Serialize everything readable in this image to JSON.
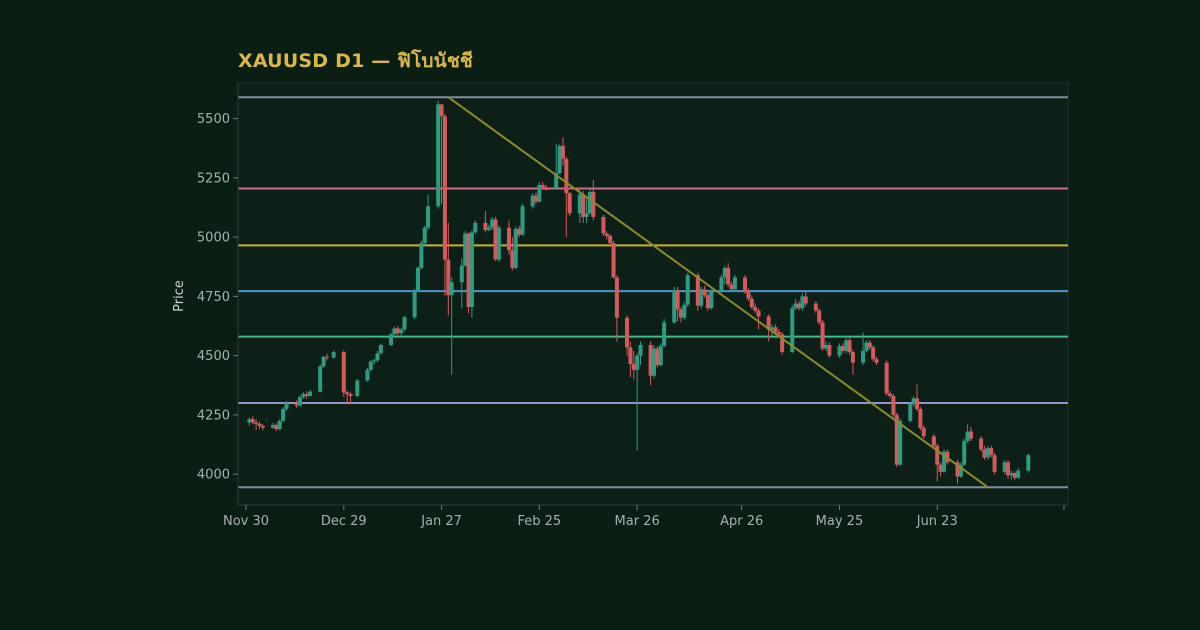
{
  "chart_data": {
    "type": "candlestick",
    "title": "XAUUSD D1 — ฟิโบนัชชี",
    "ylabel": "Price",
    "ylim": [
      3870,
      5650
    ],
    "xlim": [
      "2025-11-30",
      "2026-07-30"
    ],
    "y_ticks": [
      4000,
      4250,
      4500,
      4750,
      5000,
      5250,
      5500
    ],
    "x_ticks": [
      {
        "date": "2025-11-30",
        "label": "Nov 30"
      },
      {
        "date": "2025-12-29",
        "label": "Dec 29"
      },
      {
        "date": "2026-01-27",
        "label": "Jan 27"
      },
      {
        "date": "2026-02-25",
        "label": "Feb 25"
      },
      {
        "date": "2026-03-26",
        "label": "Mar 26"
      },
      {
        "date": "2026-04-26",
        "label": "Apr 26"
      },
      {
        "date": "2026-05-25",
        "label": "May 25"
      },
      {
        "date": "2026-06-23",
        "label": "Jun 23"
      }
    ],
    "grid": false,
    "colors": {
      "up": "#2e9c82",
      "down": "#d45b5b",
      "trendline": "#8d8a2c",
      "fib_levels": [
        "#7e8ea2",
        "#c86f86",
        "#c9b12e",
        "#4e95c9",
        "#3fbd89",
        "#9a92cc",
        "#7e8ea2"
      ]
    },
    "fib_levels": [
      5590,
      5205,
      4965,
      4772,
      4580,
      4300,
      3945
    ],
    "trendline": [
      {
        "date": "2026-01-29",
        "price": 5590
      },
      {
        "date": "2026-07-08",
        "price": 3945
      }
    ],
    "candles": [
      [
        "2025-12-01",
        4218,
        4232,
        4205,
        4240
      ],
      [
        "2025-12-02",
        4232,
        4218,
        4210,
        4245
      ],
      [
        "2025-12-03",
        4218,
        4212,
        4188,
        4232
      ],
      [
        "2025-12-04",
        4212,
        4203,
        4190,
        4222
      ],
      [
        "2025-12-05",
        4203,
        4196,
        4185,
        4212
      ],
      [
        "2025-12-08",
        4196,
        4208,
        4190,
        4216
      ],
      [
        "2025-12-09",
        4208,
        4190,
        4182,
        4215
      ],
      [
        "2025-12-10",
        4190,
        4225,
        4185,
        4232
      ],
      [
        "2025-12-11",
        4225,
        4275,
        4220,
        4282
      ],
      [
        "2025-12-12",
        4275,
        4302,
        4268,
        4308
      ],
      [
        "2025-12-15",
        4302,
        4290,
        4280,
        4312
      ],
      [
        "2025-12-16",
        4290,
        4325,
        4285,
        4332
      ],
      [
        "2025-12-17",
        4325,
        4338,
        4318,
        4346
      ],
      [
        "2025-12-18",
        4338,
        4330,
        4318,
        4350
      ],
      [
        "2025-12-19",
        4330,
        4348,
        4325,
        4356
      ],
      [
        "2025-12-22",
        4348,
        4455,
        4345,
        4462
      ],
      [
        "2025-12-23",
        4455,
        4495,
        4448,
        4500
      ],
      [
        "2025-12-24",
        4495,
        4492,
        4480,
        4508
      ],
      [
        "2025-12-26",
        4492,
        4515,
        4488,
        4522
      ],
      [
        "2025-12-29",
        4515,
        4345,
        4325,
        4522
      ],
      [
        "2025-12-30",
        4345,
        4338,
        4295,
        4352
      ],
      [
        "2025-12-31",
        4338,
        4330,
        4295,
        4345
      ],
      [
        "2026-01-02",
        4330,
        4395,
        4325,
        4402
      ],
      [
        "2026-01-05",
        4395,
        4440,
        4390,
        4448
      ],
      [
        "2026-01-06",
        4440,
        4475,
        4432,
        4482
      ],
      [
        "2026-01-07",
        4475,
        4480,
        4462,
        4488
      ],
      [
        "2026-01-08",
        4480,
        4510,
        4472,
        4520
      ],
      [
        "2026-01-09",
        4510,
        4545,
        4505,
        4552
      ],
      [
        "2026-01-12",
        4545,
        4590,
        4540,
        4596
      ],
      [
        "2026-01-13",
        4590,
        4615,
        4580,
        4622
      ],
      [
        "2026-01-14",
        4615,
        4595,
        4585,
        4625
      ],
      [
        "2026-01-15",
        4595,
        4610,
        4585,
        4618
      ],
      [
        "2026-01-16",
        4610,
        4662,
        4605,
        4668
      ],
      [
        "2026-01-19",
        4662,
        4775,
        4655,
        4782
      ],
      [
        "2026-01-20",
        4775,
        4870,
        4768,
        4878
      ],
      [
        "2026-01-21",
        4870,
        4975,
        4862,
        4985
      ],
      [
        "2026-01-22",
        4975,
        5040,
        4965,
        5048
      ],
      [
        "2026-01-23",
        5040,
        5130,
        5030,
        5180
      ],
      [
        "2026-01-26",
        5130,
        5560,
        5120,
        5575
      ],
      [
        "2026-01-27",
        5560,
        5510,
        5140,
        5560
      ],
      [
        "2026-01-28",
        5510,
        4905,
        4750,
        5520
      ],
      [
        "2026-01-29",
        4905,
        4755,
        4670,
        5060
      ],
      [
        "2026-01-30",
        4755,
        4810,
        4420,
        4830
      ],
      [
        "2026-02-02",
        4810,
        4880,
        4700,
        4910
      ],
      [
        "2026-02-03",
        4880,
        5015,
        4875,
        5025
      ],
      [
        "2026-02-04",
        5015,
        4705,
        4680,
        5020
      ],
      [
        "2026-02-05",
        4705,
        5020,
        4660,
        5030
      ],
      [
        "2026-02-06",
        5020,
        5060,
        5012,
        5070
      ],
      [
        "2026-02-09",
        5060,
        5030,
        5020,
        5110
      ],
      [
        "2026-02-10",
        5030,
        5040,
        5025,
        5050
      ],
      [
        "2026-02-11",
        5040,
        5075,
        5030,
        5085
      ],
      [
        "2026-02-12",
        5075,
        4905,
        4900,
        5085
      ],
      [
        "2026-02-13",
        4905,
        5040,
        4895,
        5050
      ],
      [
        "2026-02-16",
        5040,
        4945,
        4925,
        5070
      ],
      [
        "2026-02-17",
        4945,
        4870,
        4860,
        5000
      ],
      [
        "2026-02-18",
        4870,
        5035,
        4865,
        5045
      ],
      [
        "2026-02-19",
        5035,
        5010,
        5000,
        5048
      ],
      [
        "2026-02-20",
        5010,
        5130,
        5005,
        5140
      ],
      [
        "2026-02-23",
        5130,
        5175,
        5120,
        5185
      ],
      [
        "2026-02-24",
        5175,
        5150,
        5140,
        5188
      ],
      [
        "2026-02-25",
        5150,
        5220,
        5145,
        5232
      ],
      [
        "2026-02-26",
        5220,
        5210,
        5200,
        5232
      ],
      [
        "2026-02-27",
        5210,
        5205,
        5195,
        5220
      ],
      [
        "2026-03-02",
        5205,
        5270,
        5200,
        5395
      ],
      [
        "2026-03-03",
        5270,
        5385,
        5265,
        5390
      ],
      [
        "2026-03-04",
        5385,
        5330,
        5300,
        5420
      ],
      [
        "2026-03-05",
        5330,
        5185,
        5000,
        5340
      ],
      [
        "2026-03-06",
        5185,
        5100,
        5090,
        5190
      ],
      [
        "2026-03-09",
        5100,
        5180,
        5060,
        5200
      ],
      [
        "2026-03-10",
        5180,
        5085,
        5060,
        5195
      ],
      [
        "2026-03-11",
        5085,
        5100,
        5060,
        5170
      ],
      [
        "2026-03-12",
        5100,
        5190,
        5095,
        5200
      ],
      [
        "2026-03-13",
        5190,
        5085,
        5070,
        5240
      ],
      [
        "2026-03-16",
        5085,
        5015,
        5005,
        5095
      ],
      [
        "2026-03-17",
        5015,
        5005,
        4990,
        5025
      ],
      [
        "2026-03-18",
        5005,
        4975,
        4965,
        5012
      ],
      [
        "2026-03-19",
        4975,
        4830,
        4825,
        4985
      ],
      [
        "2026-03-20",
        4830,
        4660,
        4560,
        4840
      ],
      [
        "2026-03-23",
        4660,
        4535,
        4500,
        4670
      ],
      [
        "2026-03-24",
        4535,
        4465,
        4410,
        4560
      ],
      [
        "2026-03-25",
        4465,
        4440,
        4400,
        4520
      ],
      [
        "2026-03-26",
        4440,
        4500,
        4100,
        4510
      ],
      [
        "2026-03-27",
        4500,
        4545,
        4460,
        4560
      ],
      [
        "2026-03-30",
        4545,
        4415,
        4375,
        4560
      ],
      [
        "2026-03-31",
        4415,
        4530,
        4405,
        4545
      ],
      [
        "2026-04-01",
        4530,
        4460,
        4450,
        4540
      ],
      [
        "2026-04-02",
        4460,
        4540,
        4455,
        4550
      ],
      [
        "2026-04-03",
        4540,
        4640,
        4535,
        4655
      ],
      [
        "2026-04-06",
        4640,
        4775,
        4635,
        4790
      ],
      [
        "2026-04-07",
        4775,
        4695,
        4645,
        4790
      ],
      [
        "2026-04-08",
        4695,
        4660,
        4640,
        4705
      ],
      [
        "2026-04-09",
        4660,
        4715,
        4650,
        4725
      ],
      [
        "2026-04-10",
        4715,
        4840,
        4705,
        4850
      ],
      [
        "2026-04-13",
        4840,
        4710,
        4690,
        4850
      ],
      [
        "2026-04-14",
        4710,
        4780,
        4700,
        4790
      ],
      [
        "2026-04-15",
        4780,
        4755,
        4745,
        4795
      ],
      [
        "2026-04-16",
        4755,
        4700,
        4690,
        4765
      ],
      [
        "2026-04-17",
        4700,
        4770,
        4695,
        4780
      ],
      [
        "2026-04-20",
        4770,
        4830,
        4765,
        4842
      ],
      [
        "2026-04-21",
        4830,
        4870,
        4800,
        4880
      ],
      [
        "2026-04-22",
        4870,
        4800,
        4790,
        4890
      ],
      [
        "2026-04-23",
        4800,
        4780,
        4770,
        4812
      ],
      [
        "2026-04-24",
        4780,
        4830,
        4770,
        4842
      ],
      [
        "2026-04-27",
        4830,
        4770,
        4760,
        4840
      ],
      [
        "2026-04-28",
        4770,
        4740,
        4730,
        4785
      ],
      [
        "2026-04-29",
        4740,
        4705,
        4695,
        4755
      ],
      [
        "2026-04-30",
        4705,
        4690,
        4680,
        4720
      ],
      [
        "2026-05-01",
        4690,
        4665,
        4610,
        4700
      ],
      [
        "2026-05-04",
        4665,
        4610,
        4560,
        4675
      ],
      [
        "2026-05-05",
        4610,
        4620,
        4580,
        4632
      ],
      [
        "2026-05-06",
        4620,
        4600,
        4590,
        4632
      ],
      [
        "2026-05-07",
        4600,
        4590,
        4575,
        4612
      ],
      [
        "2026-05-08",
        4590,
        4515,
        4505,
        4600
      ],
      [
        "2026-05-11",
        4515,
        4700,
        4510,
        4712
      ],
      [
        "2026-05-12",
        4700,
        4720,
        4692,
        4740
      ],
      [
        "2026-05-13",
        4720,
        4700,
        4690,
        4732
      ],
      [
        "2026-05-14",
        4700,
        4750,
        4690,
        4762
      ],
      [
        "2026-05-15",
        4750,
        4720,
        4710,
        4775
      ],
      [
        "2026-05-18",
        4720,
        4690,
        4680,
        4730
      ],
      [
        "2026-05-19",
        4690,
        4640,
        4630,
        4700
      ],
      [
        "2026-05-20",
        4640,
        4530,
        4520,
        4650
      ],
      [
        "2026-05-21",
        4530,
        4545,
        4520,
        4560
      ],
      [
        "2026-05-22",
        4545,
        4500,
        4490,
        4556
      ],
      [
        "2026-05-25",
        4500,
        4540,
        4490,
        4552
      ],
      [
        "2026-05-26",
        4540,
        4520,
        4510,
        4552
      ],
      [
        "2026-05-27",
        4520,
        4565,
        4510,
        4575
      ],
      [
        "2026-05-28",
        4565,
        4515,
        4505,
        4575
      ],
      [
        "2026-05-29",
        4515,
        4470,
        4420,
        4525
      ],
      [
        "2026-06-01",
        4470,
        4520,
        4460,
        4598
      ],
      [
        "2026-06-02",
        4520,
        4555,
        4515,
        4565
      ],
      [
        "2026-06-03",
        4555,
        4535,
        4525,
        4565
      ],
      [
        "2026-06-04",
        4535,
        4485,
        4475,
        4545
      ],
      [
        "2026-06-05",
        4485,
        4470,
        4460,
        4495
      ],
      [
        "2026-06-08",
        4470,
        4340,
        4330,
        4480
      ],
      [
        "2026-06-09",
        4340,
        4330,
        4320,
        4352
      ],
      [
        "2026-06-10",
        4330,
        4250,
        4240,
        4340
      ],
      [
        "2026-06-11",
        4250,
        4040,
        4030,
        4260
      ],
      [
        "2026-06-12",
        4040,
        4225,
        4035,
        4235
      ],
      [
        "2026-06-15",
        4225,
        4295,
        4218,
        4302
      ],
      [
        "2026-06-16",
        4295,
        4320,
        4285,
        4330
      ],
      [
        "2026-06-17",
        4320,
        4275,
        4265,
        4378
      ],
      [
        "2026-06-18",
        4275,
        4195,
        4185,
        4285
      ],
      [
        "2026-06-19",
        4195,
        4160,
        4150,
        4205
      ],
      [
        "2026-06-22",
        4160,
        4120,
        4110,
        4170
      ],
      [
        "2026-06-23",
        4120,
        4040,
        3970,
        4130
      ],
      [
        "2026-06-24",
        4040,
        4010,
        3990,
        4050
      ],
      [
        "2026-06-25",
        4010,
        4095,
        4005,
        4105
      ],
      [
        "2026-06-26",
        4095,
        4050,
        4040,
        4105
      ],
      [
        "2026-06-29",
        4050,
        3990,
        3960,
        4060
      ],
      [
        "2026-06-30",
        3990,
        4040,
        3985,
        4050
      ],
      [
        "2026-07-01",
        4040,
        4140,
        4035,
        4150
      ],
      [
        "2026-07-02",
        4140,
        4180,
        4132,
        4210
      ],
      [
        "2026-07-03",
        4180,
        4150,
        4140,
        4200
      ],
      [
        "2026-07-06",
        4150,
        4105,
        4095,
        4160
      ],
      [
        "2026-07-07",
        4105,
        4070,
        4060,
        4120
      ],
      [
        "2026-07-08",
        4070,
        4110,
        4060,
        4120
      ],
      [
        "2026-07-09",
        4110,
        4080,
        4070,
        4120
      ],
      [
        "2026-07-10",
        4080,
        4010,
        4000,
        4090
      ],
      [
        "2026-07-13",
        4010,
        4050,
        4000,
        4060
      ],
      [
        "2026-07-14",
        4050,
        3995,
        3980,
        4060
      ],
      [
        "2026-07-15",
        3995,
        4005,
        3975,
        4015
      ],
      [
        "2026-07-16",
        4005,
        3985,
        3975,
        4012
      ],
      [
        "2026-07-17",
        3985,
        4015,
        3980,
        4025
      ],
      [
        "2026-07-20",
        4015,
        4080,
        4008,
        4088
      ]
    ]
  }
}
